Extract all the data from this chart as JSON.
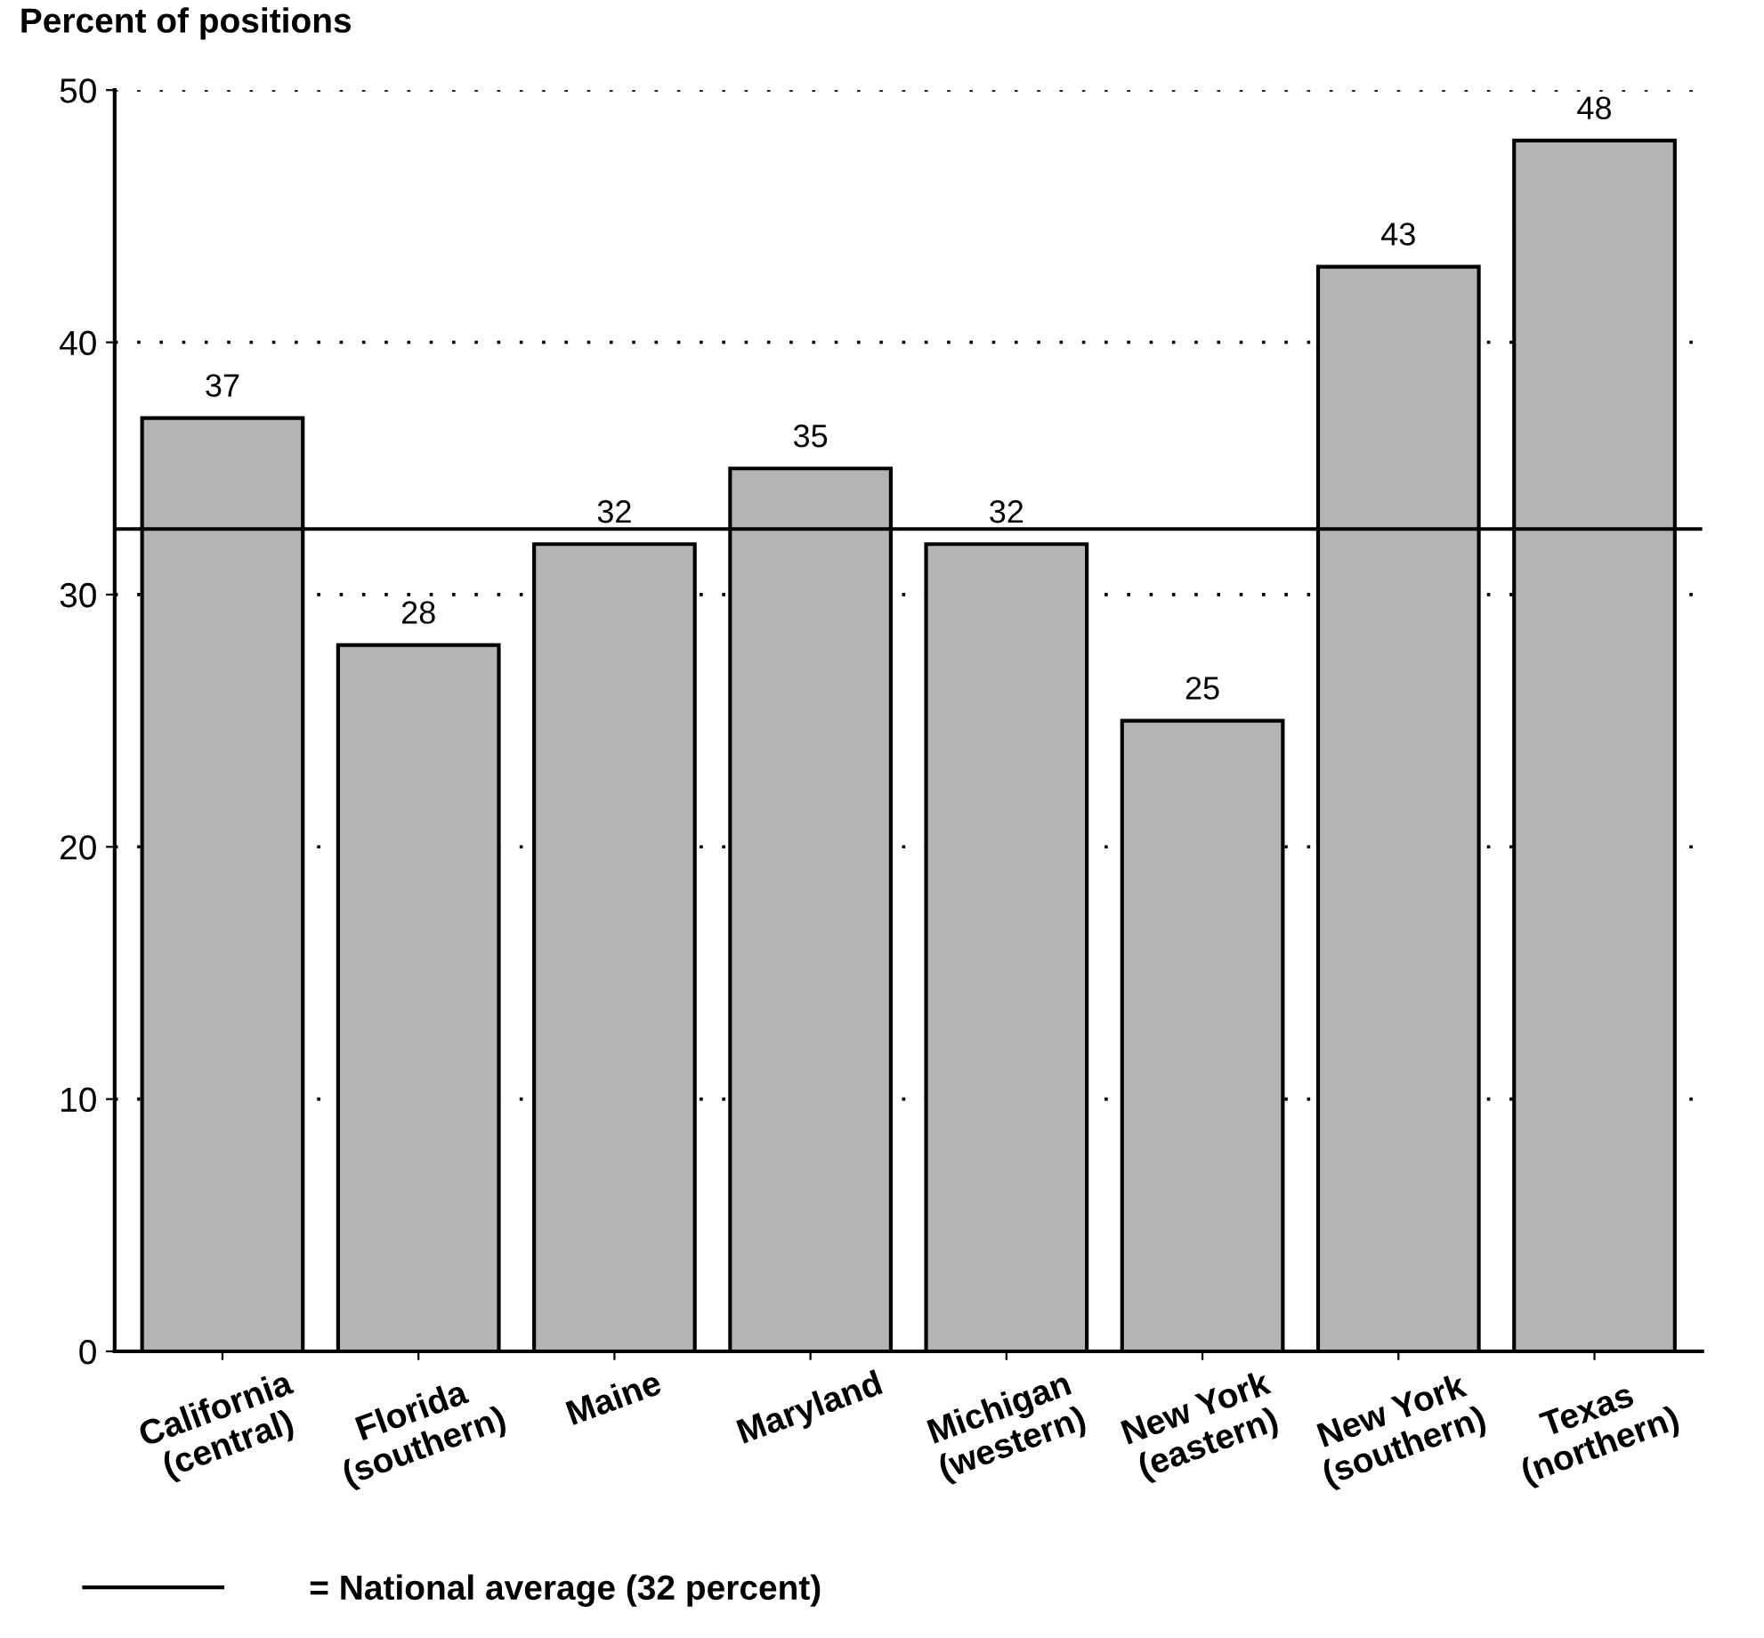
{
  "chart_data": {
    "type": "bar",
    "ylabel": "Percent of positions",
    "categories": [
      "California\n(central)",
      "Florida\n(southern)",
      "Maine",
      "Maryland",
      "Michigan\n(western)",
      "New York\n(eastern)",
      "New York\n(southern)",
      "Texas\n(northern)"
    ],
    "values": [
      37,
      28,
      32,
      35,
      32,
      25,
      43,
      48
    ],
    "color": "#b4b4b4",
    "ylim": [
      0,
      50
    ],
    "yticks": [
      0,
      10,
      20,
      30,
      40,
      50
    ],
    "grid": "y",
    "data_labels": true,
    "ref_lines": [
      {
        "axis": "y",
        "value": 32.6,
        "label": "= National average (32 percent)",
        "color": "#000000",
        "line_style": "solid"
      }
    ],
    "legend": "bottom left"
  }
}
